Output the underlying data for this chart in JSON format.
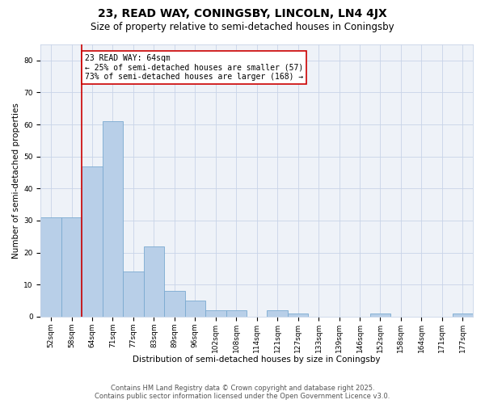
{
  "title": "23, READ WAY, CONINGSBY, LINCOLN, LN4 4JX",
  "subtitle": "Size of property relative to semi-detached houses in Coningsby",
  "xlabel": "Distribution of semi-detached houses by size in Coningsby",
  "ylabel": "Number of semi-detached properties",
  "categories": [
    "52sqm",
    "58sqm",
    "64sqm",
    "71sqm",
    "77sqm",
    "83sqm",
    "89sqm",
    "96sqm",
    "102sqm",
    "108sqm",
    "114sqm",
    "121sqm",
    "127sqm",
    "133sqm",
    "139sqm",
    "146sqm",
    "152sqm",
    "158sqm",
    "164sqm",
    "171sqm",
    "177sqm"
  ],
  "values": [
    31,
    31,
    47,
    61,
    14,
    22,
    8,
    5,
    2,
    2,
    0,
    2,
    1,
    0,
    0,
    0,
    1,
    0,
    0,
    0,
    1
  ],
  "bar_color": "#b8cfe8",
  "bar_edge_color": "#7aaad0",
  "highlight_label": "23 READ WAY: 64sqm",
  "annotation_smaller": "← 25% of semi-detached houses are smaller (57)",
  "annotation_larger": "73% of semi-detached houses are larger (168) →",
  "vline_color": "#cc0000",
  "box_color": "#cc0000",
  "ylim": [
    0,
    85
  ],
  "yticks": [
    0,
    10,
    20,
    30,
    40,
    50,
    60,
    70,
    80
  ],
  "footer_line1": "Contains HM Land Registry data © Crown copyright and database right 2025.",
  "footer_line2": "Contains public sector information licensed under the Open Government Licence v3.0.",
  "background_color": "#eef2f8",
  "grid_color": "#c8d4e8",
  "title_fontsize": 10,
  "subtitle_fontsize": 8.5,
  "axis_label_fontsize": 7.5,
  "tick_fontsize": 6.5,
  "annotation_fontsize": 7,
  "footer_fontsize": 6
}
